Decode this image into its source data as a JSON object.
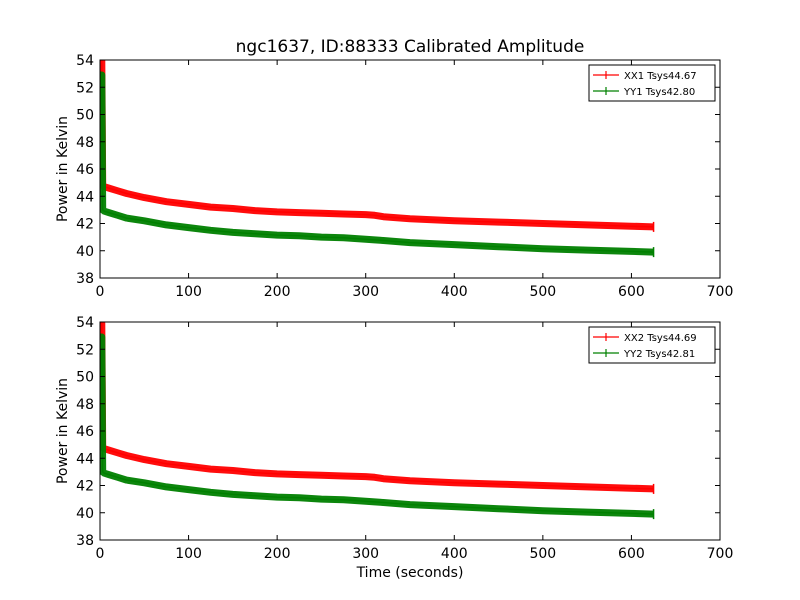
{
  "chart_data": [
    {
      "type": "line",
      "title": "ngc1637, ID:88333 Calibrated Amplitude",
      "xlabel": "",
      "ylabel": "Power in Kelvin",
      "xlim": [
        0,
        700
      ],
      "ylim": [
        38,
        54
      ],
      "xticks": [
        "0",
        "100",
        "200",
        "300",
        "400",
        "500",
        "600",
        "700"
      ],
      "yticks": [
        "38",
        "40",
        "42",
        "44",
        "46",
        "48",
        "50",
        "52",
        "54"
      ],
      "grid": false,
      "legend_position": "top-right",
      "series": [
        {
          "name": "XX1 Tsys44.67",
          "color": "#ff0000",
          "x": [
            0,
            2,
            3,
            5,
            10,
            20,
            30,
            50,
            75,
            100,
            125,
            150,
            175,
            200,
            225,
            250,
            275,
            300,
            310,
            320,
            350,
            400,
            450,
            500,
            550,
            600,
            625
          ],
          "y": [
            54.0,
            54.0,
            44.8,
            44.7,
            44.6,
            44.4,
            44.2,
            43.9,
            43.6,
            43.4,
            43.2,
            43.1,
            42.95,
            42.85,
            42.8,
            42.75,
            42.7,
            42.65,
            42.6,
            42.5,
            42.35,
            42.2,
            42.1,
            42.0,
            41.9,
            41.8,
            41.75
          ]
        },
        {
          "name": "YY1 Tsys42.80",
          "color": "#008000",
          "x": [
            0,
            2,
            3,
            5,
            10,
            20,
            30,
            50,
            75,
            100,
            125,
            150,
            175,
            200,
            225,
            250,
            275,
            300,
            310,
            320,
            350,
            400,
            450,
            500,
            550,
            600,
            625
          ],
          "y": [
            52.9,
            52.9,
            43.0,
            42.9,
            42.8,
            42.6,
            42.4,
            42.2,
            41.9,
            41.7,
            41.5,
            41.35,
            41.25,
            41.15,
            41.1,
            41.0,
            40.95,
            40.85,
            40.8,
            40.75,
            40.6,
            40.45,
            40.3,
            40.15,
            40.05,
            39.95,
            39.9
          ]
        }
      ]
    },
    {
      "type": "line",
      "title": "",
      "xlabel": "Time (seconds)",
      "ylabel": "Power in Kelvin",
      "xlim": [
        0,
        700
      ],
      "ylim": [
        38,
        54
      ],
      "xticks": [
        "0",
        "100",
        "200",
        "300",
        "400",
        "500",
        "600",
        "700"
      ],
      "yticks": [
        "38",
        "40",
        "42",
        "44",
        "46",
        "48",
        "50",
        "52",
        "54"
      ],
      "grid": false,
      "legend_position": "top-right",
      "series": [
        {
          "name": "XX2 Tsys44.69",
          "color": "#ff0000",
          "x": [
            0,
            2,
            3,
            5,
            10,
            20,
            30,
            50,
            75,
            100,
            125,
            150,
            175,
            200,
            225,
            250,
            275,
            300,
            310,
            320,
            350,
            400,
            450,
            500,
            550,
            600,
            625
          ],
          "y": [
            53.9,
            53.9,
            44.8,
            44.7,
            44.6,
            44.4,
            44.2,
            43.9,
            43.6,
            43.4,
            43.2,
            43.1,
            42.95,
            42.85,
            42.8,
            42.75,
            42.7,
            42.65,
            42.6,
            42.5,
            42.35,
            42.2,
            42.1,
            42.0,
            41.9,
            41.8,
            41.75
          ]
        },
        {
          "name": "YY2 Tsys42.81",
          "color": "#008000",
          "x": [
            0,
            2,
            3,
            5,
            10,
            20,
            30,
            50,
            75,
            100,
            125,
            150,
            175,
            200,
            225,
            250,
            275,
            300,
            310,
            320,
            350,
            400,
            450,
            500,
            550,
            600,
            625
          ],
          "y": [
            52.9,
            52.9,
            43.0,
            42.9,
            42.8,
            42.6,
            42.4,
            42.2,
            41.9,
            41.7,
            41.5,
            41.35,
            41.25,
            41.15,
            41.1,
            41.0,
            40.95,
            40.85,
            40.8,
            40.75,
            40.6,
            40.45,
            40.3,
            40.15,
            40.05,
            39.95,
            39.9
          ]
        }
      ]
    }
  ]
}
